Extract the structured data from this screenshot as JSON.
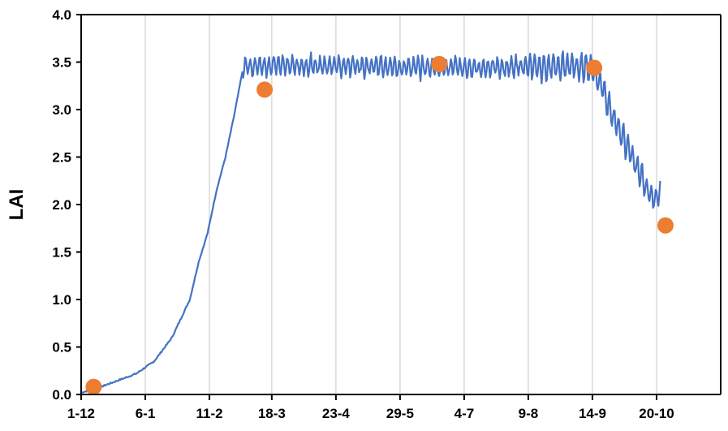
{
  "chart_data": {
    "type": "line",
    "title": "",
    "xlabel": "",
    "ylabel": "LAI",
    "ylim": [
      0,
      4.0
    ],
    "xlim": [
      "1-12",
      "25-11"
    ],
    "grid": "vertical",
    "legend": "none",
    "yticks": [
      {
        "value": 0.0,
        "label": "0.0"
      },
      {
        "value": 0.5,
        "label": "0.5"
      },
      {
        "value": 1.0,
        "label": "1.0"
      },
      {
        "value": 1.5,
        "label": "1.5"
      },
      {
        "value": 2.0,
        "label": "2.0"
      },
      {
        "value": 2.5,
        "label": "2.5"
      },
      {
        "value": 3.0,
        "label": "3.0"
      },
      {
        "value": 3.5,
        "label": "3.5"
      },
      {
        "value": 4.0,
        "label": "4.0"
      }
    ],
    "xticks": [
      "1-12",
      "6-1",
      "11-2",
      "18-3",
      "23-4",
      "29-5",
      "4-7",
      "9-8",
      "14-9",
      "20-10"
    ],
    "series": [
      {
        "kind": "line",
        "color": "#4472C4",
        "x": [
          "1-12",
          "12-12",
          "1-1",
          "11-1",
          "21-1",
          "31-1",
          "5-2",
          "10-2",
          "15-2",
          "20-2",
          "25-2",
          "2-3",
          "7-3",
          "11-3",
          "23-4",
          "29-5",
          "4-7",
          "9-8",
          "14-9",
          "19-9",
          "25-9",
          "30-9",
          "5-10",
          "10-10",
          "14-10",
          "18-10",
          "22-10"
        ],
        "y": [
          0.02,
          0.08,
          0.22,
          0.35,
          0.6,
          1.0,
          1.4,
          1.7,
          2.15,
          2.5,
          2.95,
          3.45,
          3.45,
          3.47,
          3.46,
          3.45,
          3.44,
          3.45,
          3.45,
          3.25,
          2.95,
          2.75,
          2.55,
          2.35,
          2.18,
          2.05,
          2.15
        ]
      },
      {
        "kind": "scatter",
        "color": "#ED7D31",
        "x": [
          "8-12",
          "14-3",
          "20-6",
          "15-9",
          "25-10"
        ],
        "y": [
          0.08,
          3.21,
          3.48,
          3.44,
          1.78
        ]
      }
    ]
  }
}
